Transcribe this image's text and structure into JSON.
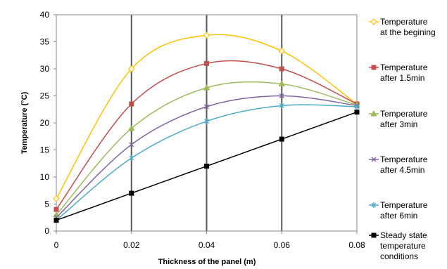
{
  "chart_data": {
    "type": "line",
    "xlabel": "Thickness of the panel (m)",
    "ylabel": "Temperature (°C)",
    "xlim": [
      0,
      0.08
    ],
    "ylim": [
      0,
      40
    ],
    "x_ticks": [
      "0",
      "0.02",
      "0.04",
      "0.06",
      "0.08"
    ],
    "y_ticks": [
      "0",
      "5",
      "10",
      "15",
      "20",
      "25",
      "30",
      "35",
      "40"
    ],
    "x": [
      0,
      0.02,
      0.04,
      0.06,
      0.08
    ],
    "grid": "vertical",
    "legend_position": "right",
    "series": [
      {
        "name_lines": [
          "Temperature",
          "at the begining"
        ],
        "values": [
          6,
          30,
          36.2,
          33.3,
          23.5
        ],
        "color": "#FFC000",
        "marker": "diamond",
        "smooth": true
      },
      {
        "name_lines": [
          "Temperature",
          "after 1.5min"
        ],
        "values": [
          4,
          23.5,
          31,
          30,
          23.5
        ],
        "color": "#C0504D",
        "marker": "square",
        "smooth": true
      },
      {
        "name_lines": [
          "Temperature",
          "after 3min"
        ],
        "values": [
          3,
          19,
          26.5,
          27.2,
          23.3
        ],
        "color": "#9BBB59",
        "marker": "triangle",
        "smooth": true
      },
      {
        "name_lines": [
          "Temperature",
          "after 4.5min"
        ],
        "values": [
          2.5,
          16,
          23,
          25,
          23.2
        ],
        "color": "#8064A2",
        "marker": "x",
        "smooth": true
      },
      {
        "name_lines": [
          "Temperature",
          "after 6min"
        ],
        "values": [
          2,
          13.5,
          20.3,
          23.2,
          23
        ],
        "color": "#4BACC6",
        "marker": "star",
        "smooth": true
      },
      {
        "name_lines": [
          "Steady state",
          "temperature",
          "conditions"
        ],
        "values": [
          2,
          7,
          12,
          17,
          22
        ],
        "color": "#000000",
        "marker": "square",
        "smooth": false
      }
    ],
    "colors": {
      "gridline": "#595959",
      "axis": "#868686"
    }
  }
}
